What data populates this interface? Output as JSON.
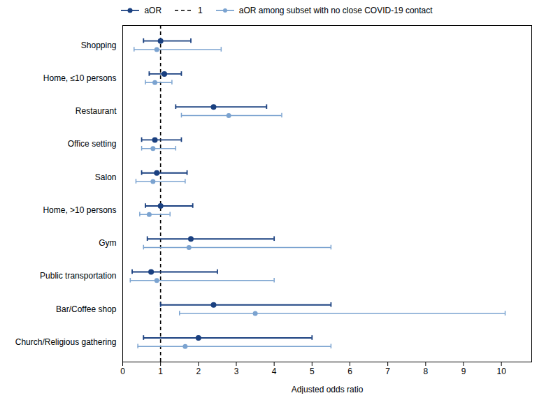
{
  "chart_data": {
    "type": "forest",
    "orientation": "horizontal",
    "xlabel": "Adjusted odds ratio",
    "categories": [
      "Shopping",
      "Home, ≤10 persons",
      "Restaurant",
      "Office setting",
      "Salon",
      "Home, >10 persons",
      "Gym",
      "Public transportation",
      "Bar/Coffee shop",
      "Church/Religious gathering"
    ],
    "series": [
      {
        "name": "aOR",
        "color": "#1a4080",
        "marker": "circle",
        "values": [
          1.0,
          1.1,
          2.4,
          0.85,
          0.9,
          1.0,
          1.8,
          0.75,
          2.4,
          2.0
        ],
        "lower": [
          0.55,
          0.7,
          1.4,
          0.5,
          0.5,
          0.6,
          0.65,
          0.25,
          1.0,
          0.55
        ],
        "upper": [
          1.8,
          1.55,
          3.8,
          1.55,
          1.7,
          1.85,
          4.0,
          2.5,
          5.5,
          5.0
        ]
      },
      {
        "name": "aOR among subset with no close COVID-19 contact",
        "color": "#7ba3d0",
        "marker": "circle",
        "values": [
          0.9,
          0.85,
          2.8,
          0.8,
          0.8,
          0.7,
          1.75,
          0.9,
          3.5,
          1.65
        ],
        "lower": [
          0.3,
          0.6,
          1.55,
          0.5,
          0.35,
          0.45,
          0.55,
          0.2,
          1.5,
          0.4
        ],
        "upper": [
          2.6,
          1.3,
          4.2,
          1.4,
          1.65,
          1.25,
          5.5,
          4.0,
          10.1,
          5.5
        ]
      }
    ],
    "reference_lines": [
      {
        "name": "1",
        "value": 1,
        "color": "#000000",
        "line_style": "dashed"
      }
    ],
    "xlim": [
      0,
      10.8
    ],
    "xticks": [
      0,
      1,
      2,
      3,
      4,
      5,
      6,
      7,
      8,
      9,
      10
    ],
    "grid": false,
    "legend": "top"
  }
}
